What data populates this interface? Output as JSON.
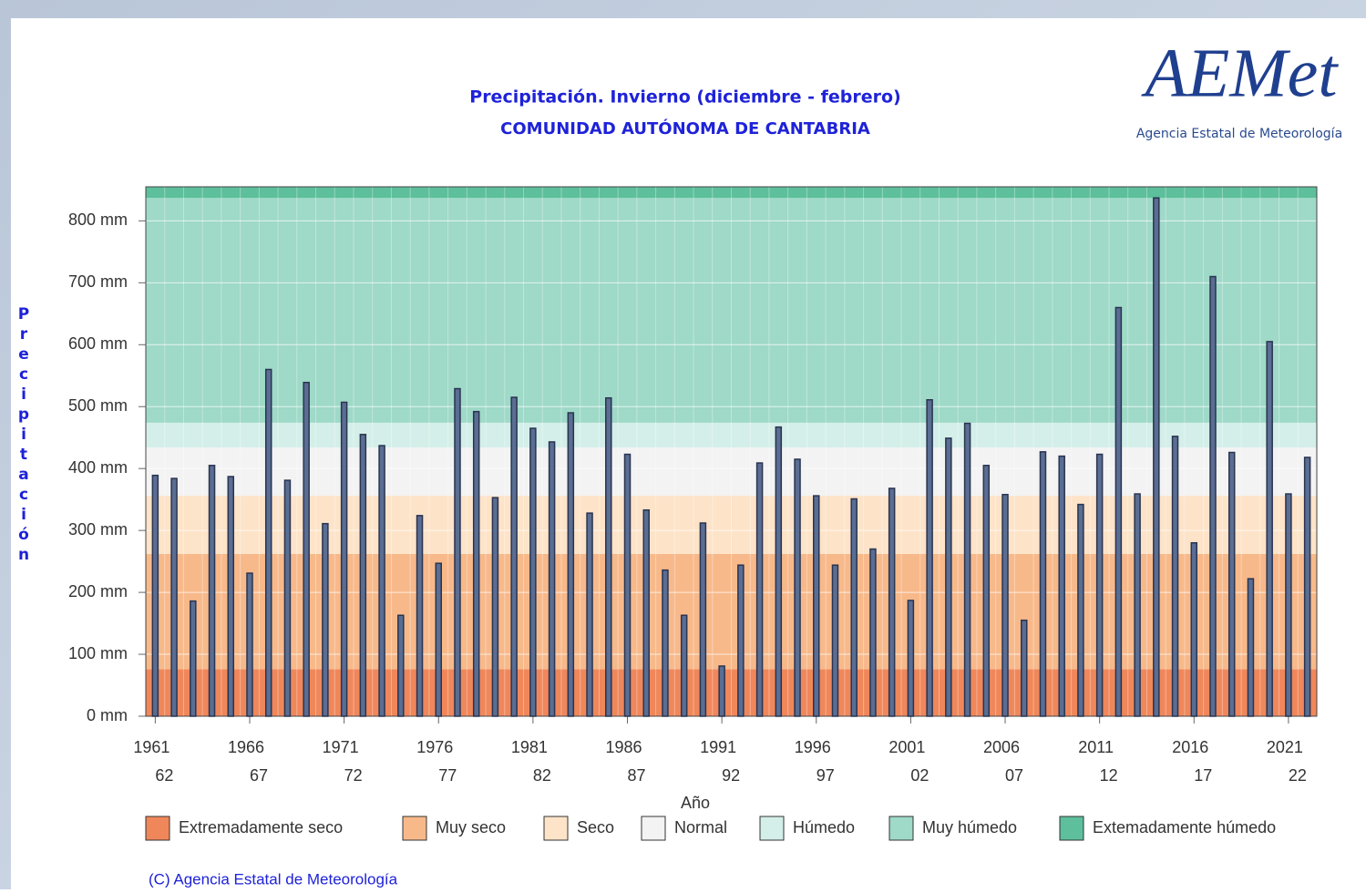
{
  "chart_data": {
    "type": "bar",
    "title": "Precipitación. Invierno (diciembre - febrero)",
    "subtitle": "COMUNIDAD AUTÓNOMA DE CANTABRIA",
    "ylabel": "Precipitación",
    "xlabel": "Año",
    "logo": {
      "name": "AEMet",
      "caption": "Agencia Estatal de Meteorología"
    },
    "copyright": "(C) Agencia Estatal de Meteorología",
    "color": "#5a6d92",
    "ylim": [
      0,
      855
    ],
    "yticks": [
      {
        "value": 0,
        "label": "0 mm"
      },
      {
        "value": 100,
        "label": "100 mm"
      },
      {
        "value": 200,
        "label": "200 mm"
      },
      {
        "value": 300,
        "label": "300 mm"
      },
      {
        "value": 400,
        "label": "400 mm"
      },
      {
        "value": 500,
        "label": "500 mm"
      },
      {
        "value": 600,
        "label": "600 mm"
      },
      {
        "value": 700,
        "label": "700 mm"
      },
      {
        "value": 800,
        "label": "800 mm"
      }
    ],
    "grid": true,
    "zones": [
      {
        "name": "Extremadamente seco",
        "color": "#f0875a",
        "from": 0,
        "to": 76
      },
      {
        "name": "Muy seco",
        "color": "#f8b98a",
        "from": 76,
        "to": 262
      },
      {
        "name": "Seco",
        "color": "#fde3c8",
        "from": 262,
        "to": 356
      },
      {
        "name": "Normal",
        "color": "#f3f3f3",
        "from": 356,
        "to": 434
      },
      {
        "name": "Húmedo",
        "color": "#d4efe9",
        "from": 434,
        "to": 474
      },
      {
        "name": "Muy húmedo",
        "color": "#9fd9c8",
        "from": 474,
        "to": 837
      },
      {
        "name": "Extemadamente húmedo",
        "color": "#5dbf9b",
        "from": 837,
        "to": 855
      }
    ],
    "categories": [
      [
        "1961",
        "62"
      ],
      null,
      null,
      null,
      null,
      [
        "1966",
        "67"
      ],
      null,
      null,
      null,
      null,
      [
        "1971",
        "72"
      ],
      null,
      null,
      null,
      null,
      [
        "1976",
        "77"
      ],
      null,
      null,
      null,
      null,
      [
        "1981",
        "82"
      ],
      null,
      null,
      null,
      null,
      [
        "1986",
        "87"
      ],
      null,
      null,
      null,
      null,
      [
        "1991",
        "92"
      ],
      null,
      null,
      null,
      null,
      [
        "1996",
        "97"
      ],
      null,
      null,
      null,
      null,
      [
        "2001",
        "02"
      ],
      null,
      null,
      null,
      null,
      [
        "2006",
        "07"
      ],
      null,
      null,
      null,
      null,
      [
        "2011",
        "12"
      ],
      null,
      null,
      null,
      null,
      [
        "2016",
        "17"
      ],
      null,
      null,
      null,
      null,
      [
        "2021",
        "22"
      ],
      null
    ],
    "values": [
      389,
      384,
      186,
      405,
      387,
      231,
      560,
      381,
      539,
      311,
      507,
      455,
      437,
      163,
      324,
      247,
      529,
      492,
      353,
      515,
      465,
      443,
      490,
      328,
      514,
      423,
      333,
      236,
      163,
      312,
      81,
      244,
      409,
      467,
      415,
      356,
      244,
      351,
      270,
      368,
      187,
      511,
      449,
      473,
      405,
      358,
      155,
      427,
      420,
      342,
      423,
      660,
      359,
      837,
      452,
      280,
      710,
      426,
      222,
      605,
      359,
      418
    ]
  }
}
